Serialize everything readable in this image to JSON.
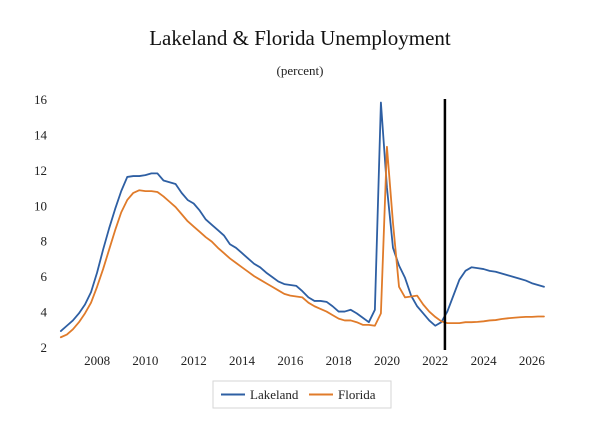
{
  "chart_data": {
    "type": "line",
    "title": "Lakeland & Florida Unemployment",
    "subtitle": "(percent)",
    "xlabel": "",
    "ylabel": "",
    "xlim": [
      2006.3,
      2026.75
    ],
    "ylim": [
      2,
      16
    ],
    "xticks": [
      2008,
      2010,
      2012,
      2014,
      2016,
      2018,
      2020,
      2022,
      2024,
      2026
    ],
    "yticks": [
      2,
      4,
      6,
      8,
      10,
      12,
      14,
      16
    ],
    "grid": false,
    "legend_position": "bottom-center",
    "vertical_marker_x": 2022.4,
    "series": [
      {
        "name": "Lakeland",
        "color": "#2e5fa3",
        "x": [
          2006.5,
          2006.75,
          2007,
          2007.25,
          2007.5,
          2007.75,
          2008,
          2008.25,
          2008.5,
          2008.75,
          2009,
          2009.25,
          2009.5,
          2009.75,
          2010,
          2010.25,
          2010.5,
          2010.75,
          2011,
          2011.25,
          2011.5,
          2011.75,
          2012,
          2012.25,
          2012.5,
          2012.75,
          2013,
          2013.25,
          2013.5,
          2013.75,
          2014,
          2014.25,
          2014.5,
          2014.75,
          2015,
          2015.25,
          2015.5,
          2015.75,
          2016,
          2016.25,
          2016.5,
          2016.75,
          2017,
          2017.25,
          2017.5,
          2017.75,
          2018,
          2018.25,
          2018.5,
          2018.75,
          2019,
          2019.25,
          2019.5,
          2019.75,
          2020,
          2020.25,
          2020.5,
          2020.75,
          2021,
          2021.25,
          2021.5,
          2021.75,
          2022,
          2022.25,
          2022.5,
          2022.75,
          2023,
          2023.25,
          2023.5,
          2023.75,
          2024,
          2024.25,
          2024.5,
          2024.75,
          2025,
          2025.25,
          2025.5,
          2025.75,
          2026,
          2026.25,
          2026.5
        ],
        "values": [
          2.9,
          3.2,
          3.5,
          3.9,
          4.4,
          5.1,
          6.2,
          7.5,
          8.7,
          9.8,
          10.8,
          11.6,
          11.65,
          11.65,
          11.7,
          11.8,
          11.8,
          11.4,
          11.3,
          11.2,
          10.7,
          10.3,
          10.1,
          9.7,
          9.2,
          8.9,
          8.6,
          8.3,
          7.8,
          7.6,
          7.3,
          7.0,
          6.7,
          6.5,
          6.2,
          5.95,
          5.7,
          5.55,
          5.5,
          5.45,
          5.15,
          4.8,
          4.6,
          4.6,
          4.55,
          4.3,
          4.0,
          4.0,
          4.1,
          3.9,
          3.65,
          3.4,
          4.1,
          15.8,
          11.0,
          7.6,
          6.6,
          5.9,
          4.9,
          4.3,
          3.9,
          3.5,
          3.2,
          3.4,
          4.0,
          4.9,
          5.8,
          6.3,
          6.5,
          6.45,
          6.4,
          6.3,
          6.25,
          6.15,
          6.05,
          5.95,
          5.85,
          5.75,
          5.6,
          5.5,
          5.4
        ]
      },
      {
        "name": "Florida",
        "color": "#e07b2a",
        "x": [
          2006.5,
          2006.75,
          2007,
          2007.25,
          2007.5,
          2007.75,
          2008,
          2008.25,
          2008.5,
          2008.75,
          2009,
          2009.25,
          2009.5,
          2009.75,
          2010,
          2010.25,
          2010.5,
          2010.75,
          2011,
          2011.25,
          2011.5,
          2011.75,
          2012,
          2012.25,
          2012.5,
          2012.75,
          2013,
          2013.25,
          2013.5,
          2013.75,
          2014,
          2014.25,
          2014.5,
          2014.75,
          2015,
          2015.25,
          2015.5,
          2015.75,
          2016,
          2016.25,
          2016.5,
          2016.75,
          2017,
          2017.25,
          2017.5,
          2017.75,
          2018,
          2018.25,
          2018.5,
          2018.75,
          2019,
          2019.25,
          2019.5,
          2019.75,
          2020,
          2020.25,
          2020.5,
          2020.75,
          2021,
          2021.25,
          2021.5,
          2021.75,
          2022,
          2022.25,
          2022.5,
          2022.75,
          2023,
          2023.25,
          2023.5,
          2023.75,
          2024,
          2024.25,
          2024.5,
          2024.75,
          2025,
          2025.25,
          2025.5,
          2025.75,
          2026,
          2026.25,
          2026.5
        ],
        "values": [
          2.55,
          2.7,
          3.0,
          3.4,
          3.9,
          4.5,
          5.4,
          6.4,
          7.5,
          8.6,
          9.6,
          10.3,
          10.7,
          10.85,
          10.8,
          10.8,
          10.75,
          10.5,
          10.2,
          9.9,
          9.5,
          9.1,
          8.8,
          8.5,
          8.2,
          7.95,
          7.6,
          7.3,
          7.0,
          6.75,
          6.5,
          6.25,
          6.0,
          5.8,
          5.6,
          5.4,
          5.2,
          5.0,
          4.9,
          4.85,
          4.8,
          4.5,
          4.3,
          4.15,
          4.0,
          3.8,
          3.6,
          3.5,
          3.5,
          3.4,
          3.25,
          3.25,
          3.2,
          3.9,
          13.3,
          9.0,
          5.4,
          4.8,
          4.85,
          4.9,
          4.4,
          4.0,
          3.7,
          3.45,
          3.35,
          3.35,
          3.35,
          3.4,
          3.4,
          3.42,
          3.45,
          3.5,
          3.52,
          3.58,
          3.62,
          3.65,
          3.68,
          3.7,
          3.7,
          3.72,
          3.72
        ]
      }
    ]
  }
}
